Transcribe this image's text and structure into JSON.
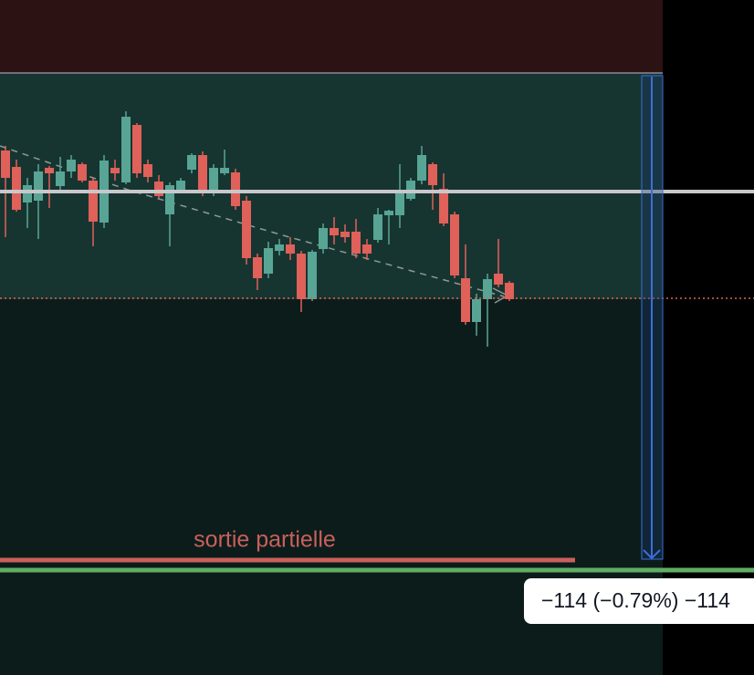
{
  "annotations": {
    "exit_label": "sortie partielle"
  },
  "measure": {
    "label": "−114 (−0.79%) −114"
  }
}
